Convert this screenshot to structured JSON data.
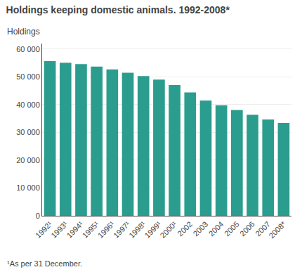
{
  "chart_data": {
    "type": "bar",
    "title": "Holdings keeping domestic animals. 1992-2008*",
    "ylabel": "Holdings",
    "footnote": "¹As per 31 December.",
    "categories": [
      "1992¹",
      "1993¹",
      "1994¹",
      "1995¹",
      "1996¹",
      "1997¹",
      "1998¹",
      "1999¹",
      "2000¹",
      "2002",
      "2003",
      "2004",
      "2005",
      "2006",
      "2007",
      "2008*"
    ],
    "values": [
      55700,
      55100,
      54600,
      53700,
      52700,
      51500,
      50300,
      49000,
      47100,
      44400,
      41500,
      39800,
      38100,
      36400,
      34700,
      33400
    ],
    "color": "#2a9d8f",
    "ylim": [
      0,
      62000
    ],
    "yticks": [
      0,
      {
        "value": 10000,
        "label": "10 000"
      },
      {
        "value": 20000,
        "label": "20 000"
      },
      {
        "value": 30000,
        "label": "30 000"
      },
      {
        "value": 40000,
        "label": "40 000"
      },
      {
        "value": 50000,
        "label": "50 000"
      },
      {
        "value": 60000,
        "label": "60 000"
      }
    ],
    "grid": true
  }
}
